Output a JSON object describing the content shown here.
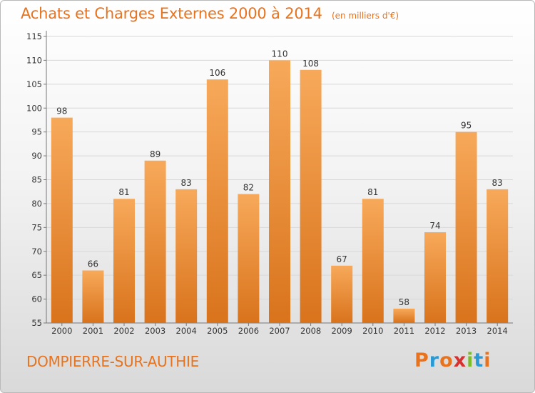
{
  "header": {
    "title": "Achats et Charges Externes 2000 à 2014",
    "subtitle": "(en milliers d'€)"
  },
  "footer": {
    "town": "DOMPIERRE-SUR-AUTHIE",
    "logo_text": "Proxiti"
  },
  "colors": {
    "accent": "#e8731e",
    "bar_light": "#f7a95a",
    "bar_dark": "#d9731c",
    "logo": [
      "#e8731e",
      "#2a9ad6",
      "#e8731e",
      "#d82f2f",
      "#7dbb2a",
      "#2a9ad6",
      "#e8731e"
    ]
  },
  "chart_data": {
    "type": "bar",
    "title": "Achats et Charges Externes 2000 à 2014",
    "subtitle": "(en milliers d'€)",
    "xlabel": "",
    "ylabel": "",
    "categories": [
      "2000",
      "2001",
      "2002",
      "2003",
      "2004",
      "2005",
      "2006",
      "2007",
      "2008",
      "2009",
      "2010",
      "2011",
      "2012",
      "2013",
      "2014"
    ],
    "values": [
      98,
      66,
      81,
      89,
      83,
      106,
      82,
      110,
      108,
      67,
      81,
      58,
      74,
      95,
      83
    ],
    "ylim": [
      55,
      115
    ],
    "yticks": [
      55,
      60,
      65,
      70,
      75,
      80,
      85,
      90,
      95,
      100,
      105,
      110,
      115
    ],
    "grid": true,
    "legend": "none"
  }
}
